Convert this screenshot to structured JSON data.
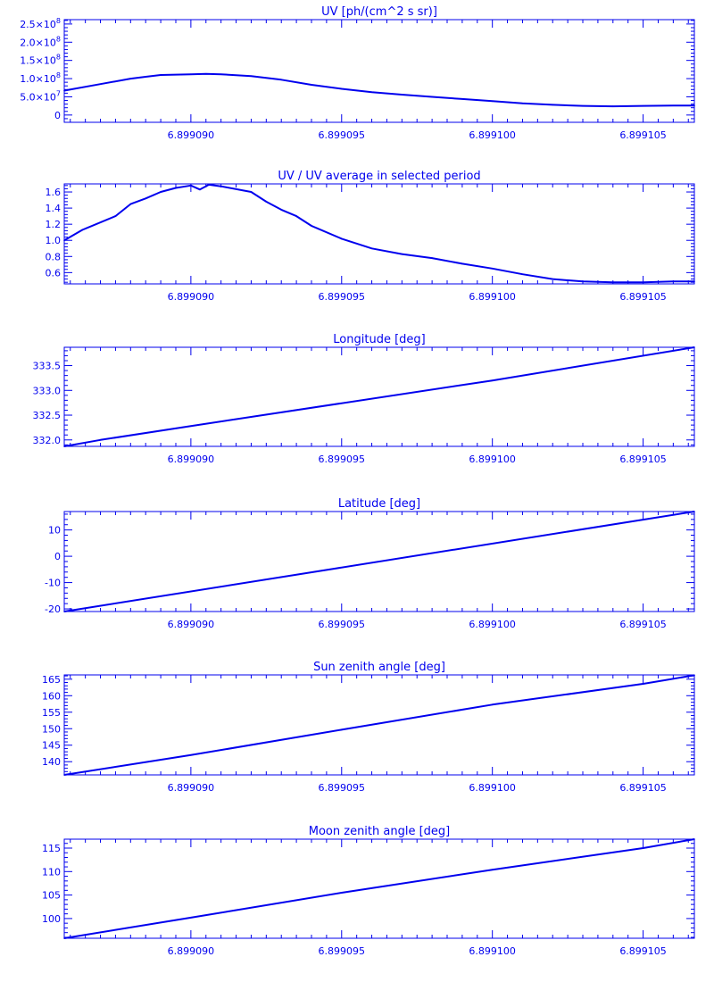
{
  "style": {
    "line_color": "#0000ee",
    "background": "#ffffff"
  },
  "chart_data": [
    {
      "type": "line",
      "title": "UV [ph/(cm^2 s sr)]",
      "xlabel": "",
      "ylabel": "",
      "xlim": [
        6.8990858,
        6.8991067
      ],
      "ylim": [
        -20000000.0,
        262000000.0
      ],
      "xticks": [
        6.89909,
        6.899095,
        6.8991,
        6.899105
      ],
      "xtick_labels": [
        "6.899090",
        "6.899095",
        "6.899100",
        "6.899105"
      ],
      "yticks": [
        0,
        50000000.0,
        100000000.0,
        150000000.0,
        200000000.0,
        250000000.0
      ],
      "ytick_labels": [
        {
          "m": "0",
          "e": ""
        },
        {
          "m": "5.0×10",
          "e": "7"
        },
        {
          "m": "1.0×10",
          "e": "8"
        },
        {
          "m": "1.5×10",
          "e": "8"
        },
        {
          "m": "2.0×10",
          "e": "8"
        },
        {
          "m": "2.5×10",
          "e": "8"
        }
      ],
      "series": [
        {
          "x": [
            6.8990858,
            6.899087,
            6.899088,
            6.8990885,
            6.899089,
            6.89909,
            6.8990905,
            6.899091,
            6.899092,
            6.899093,
            6.899094,
            6.899095,
            6.899096,
            6.899097,
            6.899098,
            6.899099,
            6.8991,
            6.899101,
            6.899102,
            6.899103,
            6.899104,
            6.899105,
            6.899106,
            6.8991067
          ],
          "y": [
            67000000.0,
            85000000.0,
            100000000.0,
            105000000.0,
            110000000.0,
            112000000.0,
            113000000.0,
            112000000.0,
            107000000.0,
            97000000.0,
            83000000.0,
            72000000.0,
            63000000.0,
            56000000.0,
            50000000.0,
            44000000.0,
            38000000.0,
            32000000.0,
            28000000.0,
            25000000.0,
            24000000.0,
            25000000.0,
            26000000.0,
            26000000.0
          ]
        }
      ]
    },
    {
      "type": "line",
      "title": "UV / UV average in selected period",
      "xlabel": "",
      "ylabel": "",
      "xlim": [
        6.8990858,
        6.8991067
      ],
      "ylim": [
        0.46,
        1.7
      ],
      "xticks": [
        6.89909,
        6.899095,
        6.8991,
        6.899105
      ],
      "xtick_labels": [
        "6.899090",
        "6.899095",
        "6.899100",
        "6.899105"
      ],
      "yticks": [
        0.6,
        0.8,
        1.0,
        1.2,
        1.4,
        1.6
      ],
      "ytick_labels": [
        {
          "m": "0.6",
          "e": ""
        },
        {
          "m": "0.8",
          "e": ""
        },
        {
          "m": "1.0",
          "e": ""
        },
        {
          "m": "1.2",
          "e": ""
        },
        {
          "m": "1.4",
          "e": ""
        },
        {
          "m": "1.6",
          "e": ""
        }
      ],
      "series": [
        {
          "x": [
            6.8990858,
            6.8990864,
            6.8990875,
            6.899088,
            6.8990885,
            6.899089,
            6.8990895,
            6.89909,
            6.8990903,
            6.8990906,
            6.899091,
            6.899092,
            6.8990925,
            6.899093,
            6.8990935,
            6.899094,
            6.899095,
            6.899096,
            6.899097,
            6.899098,
            6.899099,
            6.8991,
            6.899101,
            6.899102,
            6.899103,
            6.899104,
            6.899105,
            6.899106,
            6.8991067
          ],
          "y": [
            1.0,
            1.13,
            1.3,
            1.45,
            1.52,
            1.6,
            1.65,
            1.68,
            1.63,
            1.69,
            1.67,
            1.6,
            1.48,
            1.38,
            1.3,
            1.18,
            1.02,
            0.9,
            0.83,
            0.78,
            0.71,
            0.65,
            0.58,
            0.52,
            0.49,
            0.48,
            0.48,
            0.49,
            0.49
          ]
        }
      ]
    },
    {
      "type": "line",
      "title": "Longitude [deg]",
      "xlabel": "",
      "ylabel": "",
      "xlim": [
        6.8990858,
        6.8991067
      ],
      "ylim": [
        331.87,
        333.87
      ],
      "xticks": [
        6.89909,
        6.899095,
        6.8991,
        6.899105
      ],
      "xtick_labels": [
        "6.899090",
        "6.899095",
        "6.899100",
        "6.899105"
      ],
      "yticks": [
        332.0,
        332.5,
        333.0,
        333.5
      ],
      "ytick_labels": [
        {
          "m": "332.0",
          "e": ""
        },
        {
          "m": "332.5",
          "e": ""
        },
        {
          "m": "333.0",
          "e": ""
        },
        {
          "m": "333.5",
          "e": ""
        }
      ],
      "series": [
        {
          "x": [
            6.8990858,
            6.899087,
            6.89909,
            6.8991,
            6.8991067
          ],
          "y": [
            331.87,
            332.0,
            332.28,
            333.2,
            333.87
          ]
        }
      ]
    },
    {
      "type": "line",
      "title": "Latitude [deg]",
      "xlabel": "",
      "ylabel": "",
      "xlim": [
        6.8990858,
        6.8991067
      ],
      "ylim": [
        -21,
        17
      ],
      "xticks": [
        6.89909,
        6.899095,
        6.8991,
        6.899105
      ],
      "xtick_labels": [
        "6.899090",
        "6.899095",
        "6.899100",
        "6.899105"
      ],
      "yticks": [
        -20,
        -10,
        0,
        10
      ],
      "ytick_labels": [
        {
          "m": "-20",
          "e": ""
        },
        {
          "m": "-10",
          "e": ""
        },
        {
          "m": "0",
          "e": ""
        },
        {
          "m": "10",
          "e": ""
        }
      ],
      "series": [
        {
          "x": [
            6.8990858,
            6.8991067
          ],
          "y": [
            -21,
            17
          ]
        }
      ]
    },
    {
      "type": "line",
      "title": "Sun zenith angle [deg]",
      "xlabel": "",
      "ylabel": "",
      "xlim": [
        6.8990858,
        6.8991067
      ],
      "ylim": [
        136,
        166.3
      ],
      "xticks": [
        6.89909,
        6.899095,
        6.8991,
        6.899105
      ],
      "xtick_labels": [
        "6.899090",
        "6.899095",
        "6.899100",
        "6.899105"
      ],
      "yticks": [
        140,
        145,
        150,
        155,
        160,
        165
      ],
      "ytick_labels": [
        {
          "m": "140",
          "e": ""
        },
        {
          "m": "145",
          "e": ""
        },
        {
          "m": "150",
          "e": ""
        },
        {
          "m": "155",
          "e": ""
        },
        {
          "m": "160",
          "e": ""
        },
        {
          "m": "165",
          "e": ""
        }
      ],
      "series": [
        {
          "x": [
            6.8990858,
            6.89909,
            6.899095,
            6.8991,
            6.899105,
            6.8991067
          ],
          "y": [
            136,
            142,
            149.7,
            157.3,
            163.6,
            166.2
          ]
        }
      ]
    },
    {
      "type": "line",
      "title": "Moon zenith angle [deg]",
      "xlabel": "",
      "ylabel": "",
      "xlim": [
        6.8990858,
        6.8991067
      ],
      "ylim": [
        95.8,
        116.9
      ],
      "xticks": [
        6.89909,
        6.899095,
        6.8991,
        6.899105
      ],
      "xtick_labels": [
        "6.899090",
        "6.899095",
        "6.899100",
        "6.899105"
      ],
      "yticks": [
        100,
        105,
        110,
        115
      ],
      "ytick_labels": [
        {
          "m": "100",
          "e": ""
        },
        {
          "m": "105",
          "e": ""
        },
        {
          "m": "110",
          "e": ""
        },
        {
          "m": "115",
          "e": ""
        }
      ],
      "series": [
        {
          "x": [
            6.8990858,
            6.89909,
            6.899095,
            6.8991,
            6.899105,
            6.8991067
          ],
          "y": [
            95.8,
            100.2,
            105.5,
            110.4,
            115.0,
            116.9
          ]
        }
      ]
    }
  ]
}
